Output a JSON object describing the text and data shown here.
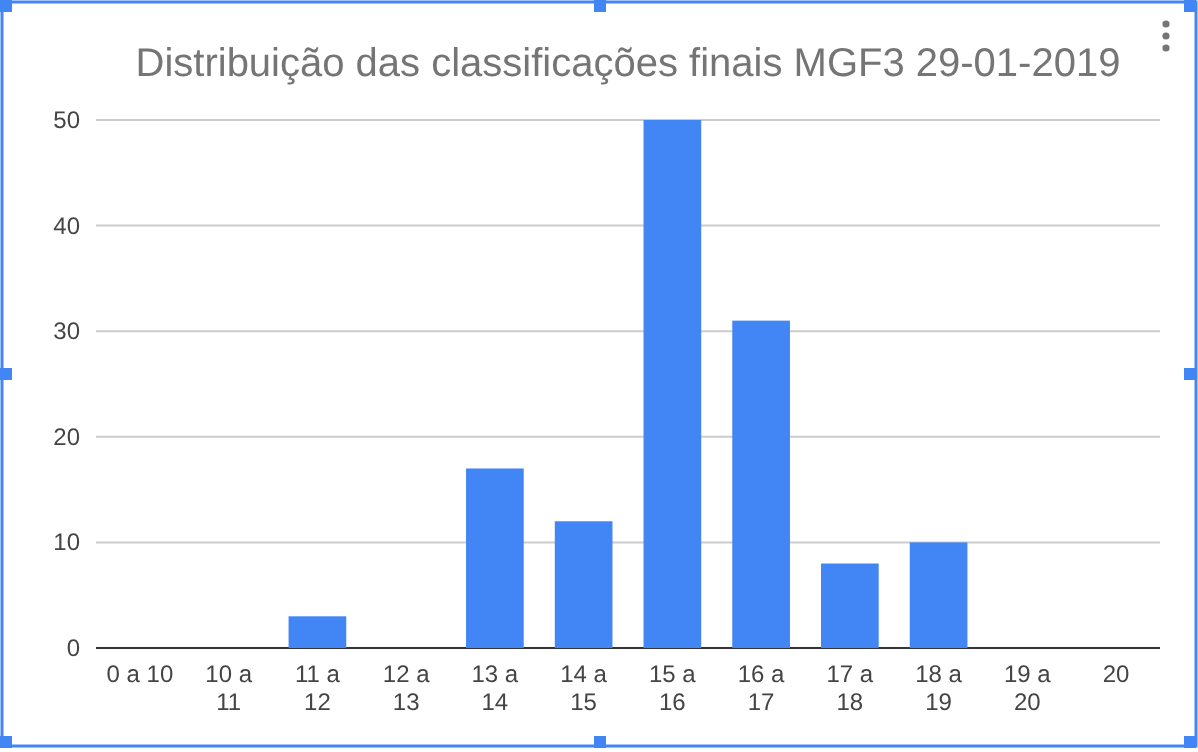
{
  "chart_data": {
    "type": "bar",
    "title": "Distribuição das classificações finais MGF3 29-01-2019",
    "categories": [
      "0 a 10",
      "10 a 11",
      "11 a 12",
      "12 a 13",
      "13 a 14",
      "14 a 15",
      "15 a 16",
      "16 a 17",
      "17 a 18",
      "18 a 19",
      "19 a 20",
      "20"
    ],
    "values": [
      0,
      0,
      3,
      0,
      17,
      12,
      50,
      31,
      8,
      10,
      0,
      0
    ],
    "color": "#4285f4",
    "ylim": [
      0,
      50
    ],
    "yticks": [
      0,
      10,
      20,
      30,
      40,
      50
    ],
    "grid": true
  }
}
